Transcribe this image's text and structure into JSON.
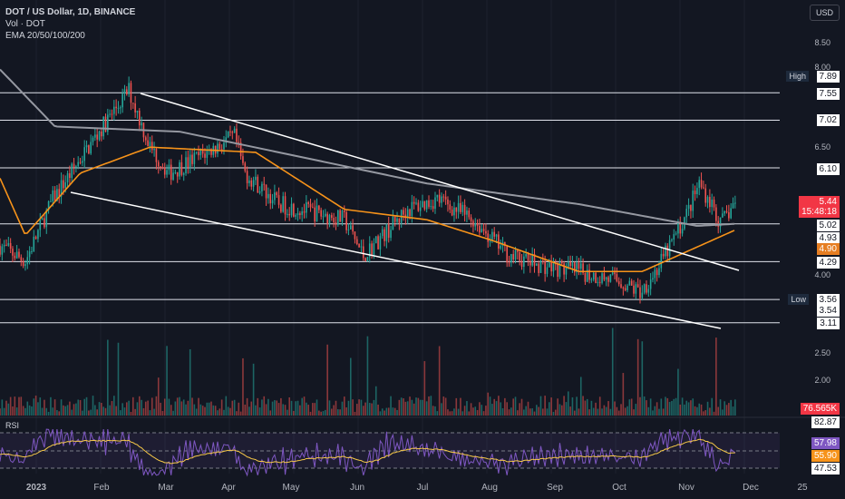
{
  "header": {
    "title": "DOT / US Dollar, 1D, BINANCE",
    "vol": "Vol · DOT",
    "ema": "EMA 20/50/100/200"
  },
  "currency_button": "USD",
  "price_labels": {
    "high_tag": "High",
    "high": "7.89",
    "low_tag": "Low",
    "low": "3.56",
    "current": "5.44",
    "countdown": "15:48:18",
    "ema_val": "4.90",
    "ema_gray": "5.02",
    "level_493": "4.93",
    "volume": "76.565K",
    "rsi_a": "57.98",
    "rsi_b": "55.90",
    "rsi_upper": "82.87",
    "rsi_lower": "47.53"
  },
  "rsi_label": "RSI",
  "colors": {
    "up": "#26a69a",
    "down": "#ef5350",
    "ema50": "#f7931a",
    "ma200": "#9598a1",
    "rsi": "#7e57c2"
  },
  "chart_data": {
    "type": "candlestick",
    "title": "DOT / US Dollar, 1D, BINANCE",
    "y_ticks": [
      "8.50",
      "8.00",
      "6.50",
      "4.00",
      "2.50",
      "2.00"
    ],
    "x_ticks": [
      "2023",
      "Feb",
      "Mar",
      "Apr",
      "May",
      "Jun",
      "Jul",
      "Aug",
      "Sep",
      "Oct",
      "Nov",
      "Dec",
      "25"
    ],
    "horizontal_levels": [
      7.55,
      7.02,
      6.1,
      5.02,
      4.29,
      3.56,
      3.11
    ],
    "ylim": [
      1.8,
      8.9
    ],
    "close_path": [
      [
        "2022-12-20",
        4.6
      ],
      [
        "2023-01-01",
        4.3
      ],
      [
        "2023-01-14",
        5.5
      ],
      [
        "2023-02-05",
        6.8
      ],
      [
        "2023-02-19",
        7.6
      ],
      [
        "2023-03-01",
        6.5
      ],
      [
        "2023-03-10",
        6.0
      ],
      [
        "2023-04-10",
        6.7
      ],
      [
        "2023-04-15",
        6.0
      ],
      [
        "2023-05-01",
        5.4
      ],
      [
        "2023-06-01",
        5.1
      ],
      [
        "2023-06-10",
        4.4
      ],
      [
        "2023-07-01",
        5.3
      ],
      [
        "2023-07-15",
        5.5
      ],
      [
        "2023-08-01",
        5.1
      ],
      [
        "2023-08-18",
        4.4
      ],
      [
        "2023-09-05",
        4.2
      ],
      [
        "2023-09-20",
        4.1
      ],
      [
        "2023-10-10",
        3.9
      ],
      [
        "2023-10-19",
        3.7
      ],
      [
        "2023-10-28",
        4.2
      ],
      [
        "2023-11-10",
        5.2
      ],
      [
        "2023-11-16",
        5.8
      ],
      [
        "2023-11-22",
        5.4
      ],
      [
        "2023-11-26",
        5.0
      ],
      [
        "2023-12-03",
        5.44
      ]
    ],
    "ema50_path": [
      [
        "2022-12-20",
        5.9
      ],
      [
        "2023-01-01",
        4.8
      ],
      [
        "2023-01-27",
        6.0
      ],
      [
        "2023-03-01",
        6.5
      ],
      [
        "2023-04-20",
        6.4
      ],
      [
        "2023-06-01",
        5.3
      ],
      [
        "2023-07-10",
        5.1
      ],
      [
        "2023-08-10",
        4.7
      ],
      [
        "2023-09-20",
        4.1
      ],
      [
        "2023-10-20",
        4.1
      ],
      [
        "2023-12-03",
        4.9
      ]
    ],
    "ma200_path": [
      [
        "2022-12-20",
        8.0
      ],
      [
        "2023-01-15",
        6.9
      ],
      [
        "2023-03-15",
        6.8
      ],
      [
        "2023-05-01",
        6.4
      ],
      [
        "2023-07-10",
        5.8
      ],
      [
        "2023-09-20",
        5.4
      ],
      [
        "2023-11-15",
        4.98
      ],
      [
        "2023-12-03",
        5.02
      ]
    ],
    "rsi_last": 57.98,
    "rsi_ma_last": 55.9
  }
}
